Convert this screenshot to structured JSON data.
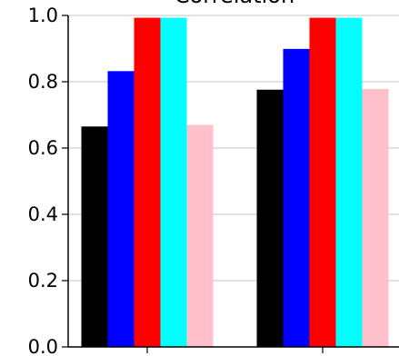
{
  "chart_data": {
    "type": "bar",
    "title": "Correlation",
    "ylim": [
      0,
      1.0
    ],
    "yticks": [
      0.0,
      0.2,
      0.4,
      0.6,
      0.8,
      1.0
    ],
    "ytick_labels": [
      "0.0",
      "0.2",
      "0.4",
      "0.6",
      "0.8",
      "1.0"
    ],
    "grid": true,
    "categories": [
      "",
      ""
    ],
    "series": [
      {
        "color": "#000000",
        "values": [
          0.665,
          0.776
        ]
      },
      {
        "color": "#0000ff",
        "values": [
          0.832,
          0.899
        ]
      },
      {
        "color": "#ff0000",
        "values": [
          0.993,
          0.993
        ]
      },
      {
        "color": "#00ffff",
        "values": [
          0.993,
          0.993
        ]
      },
      {
        "color": "#ffc0cb",
        "values": [
          0.67,
          0.778
        ]
      }
    ]
  }
}
